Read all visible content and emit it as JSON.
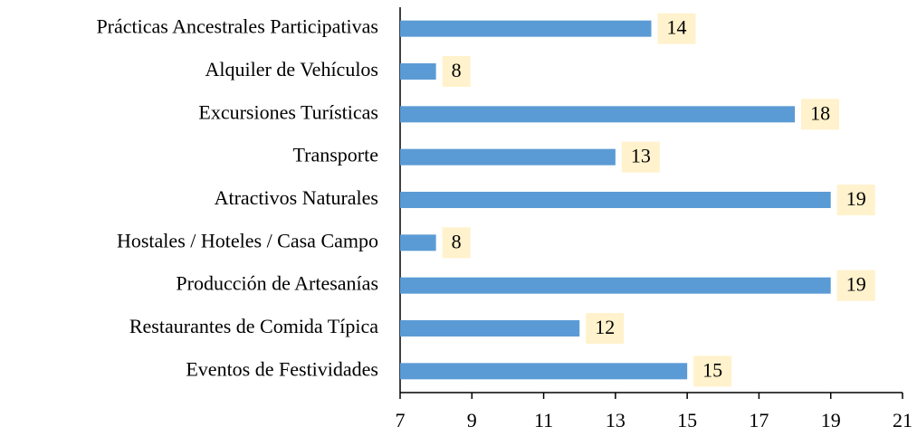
{
  "chart_data": {
    "type": "bar",
    "orientation": "horizontal",
    "categories": [
      "Prácticas Ancestrales Participativas",
      "Alquiler de Vehículos",
      "Excursiones Turísticas",
      "Transporte",
      "Atractivos Naturales",
      "Hostales / Hoteles / Casa Campo",
      "Producción de Artesanías",
      "Restaurantes de Comida Típica",
      "Eventos de Festividades"
    ],
    "values": [
      14,
      8,
      18,
      13,
      19,
      8,
      19,
      12,
      15
    ],
    "color": "#5b9bd5",
    "label_box_color": "#fff2cc",
    "xlim": [
      7,
      21
    ],
    "xticks": [
      7,
      9,
      11,
      13,
      15,
      17,
      19,
      21
    ],
    "grid": false
  }
}
